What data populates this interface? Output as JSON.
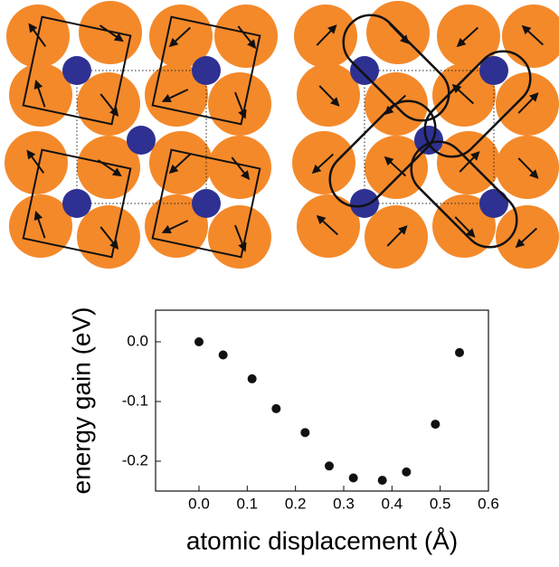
{
  "chart_data": {
    "type": "scatter",
    "x": [
      0.0,
      0.05,
      0.11,
      0.16,
      0.22,
      0.27,
      0.32,
      0.38,
      0.43,
      0.49,
      0.54
    ],
    "values": [
      0.0,
      -0.022,
      -0.062,
      -0.112,
      -0.152,
      -0.208,
      -0.228,
      -0.232,
      -0.218,
      -0.138,
      -0.018
    ],
    "color": "#111111",
    "xlabel": "atomic displacement (Å)",
    "ylabel": "energy gain (eV)",
    "xlim": [
      -0.09,
      0.6
    ],
    "ylim": [
      -0.25,
      0.053
    ],
    "xticks": [
      {
        "value": 0,
        "label": "0.0"
      },
      0.1,
      0.2,
      0.3,
      0.4,
      0.5,
      0.6
    ],
    "yticks": [
      {
        "value": 0,
        "label": "0.0"
      },
      -0.1,
      -0.2
    ]
  }
}
